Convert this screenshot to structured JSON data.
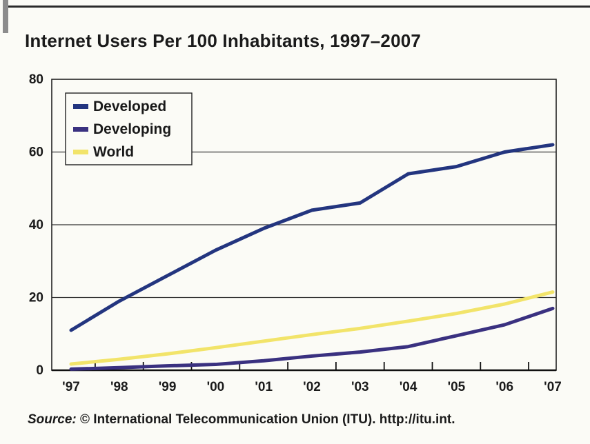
{
  "chart_data": {
    "type": "line",
    "title": "Internet Users Per 100 Inhabitants, 1997–2007",
    "xlabel": "",
    "ylabel": "",
    "x": [
      "'97",
      "'98",
      "'99",
      "'00",
      "'01",
      "'02",
      "'03",
      "'04",
      "'05",
      "'06",
      "'07"
    ],
    "ylim": [
      0,
      80
    ],
    "yticks": [
      0,
      20,
      40,
      60,
      80
    ],
    "grid": "horizontal",
    "legend_position": "top-left",
    "series": [
      {
        "name": "Developed",
        "color": "#23357f",
        "values": [
          11,
          19,
          26,
          33,
          39,
          44,
          46,
          54,
          56,
          60,
          62
        ]
      },
      {
        "name": "Developing",
        "color": "#3a3180",
        "values": [
          0.3,
          0.7,
          1.2,
          1.6,
          2.6,
          3.9,
          5.0,
          6.5,
          9.5,
          12.5,
          17
        ]
      },
      {
        "name": "World",
        "color": "#f2e46a",
        "values": [
          1.7,
          3.0,
          4.5,
          6.2,
          8.0,
          9.8,
          11.5,
          13.5,
          15.6,
          18.2,
          21.5
        ]
      }
    ]
  },
  "source": {
    "lead": "Source:",
    "text": " © International Telecommunication Union (ITU). http://itu.int."
  }
}
